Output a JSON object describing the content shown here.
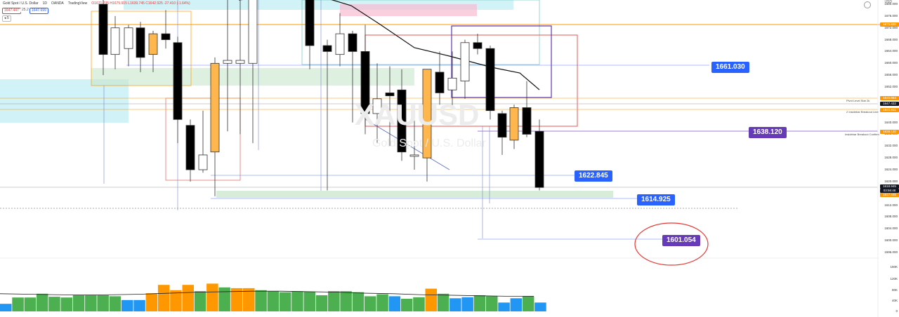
{
  "header": {
    "symbol": "Gold Spot / U.S. Dollar",
    "timeframe": "1D",
    "broker": "OANDA",
    "platform": "TradingView",
    "ohlc": "O1671.235 H1675.915 L1639.745 C1642.925 -27.410 (-1.64%)",
    "sell_price": "1647.447",
    "spread": "25.2",
    "buy_price": "1647.699",
    "indicator_toggle": "◂ 5",
    "currency": "USD"
  },
  "watermark": {
    "symbol": "XAUUSD",
    "name": "Gold Spot / U.S. Dollar"
  },
  "price_labels": [
    {
      "text": "1661.030",
      "color": "#2962ff"
    },
    {
      "text": "1638.120",
      "color": "#673ab7"
    },
    {
      "text": "1622.845",
      "color": "#2962ff"
    },
    {
      "text": "1614.925",
      "color": "#2962ff"
    },
    {
      "text": "1601.054",
      "color": "#673ab7"
    }
  ],
  "annotations": {
    "pivot": "Pivot Level Star 2k",
    "inside_breakout": "2 Insidebar Breakout Line",
    "confirm": "Insidebar Breakout Confirm"
  },
  "axis": {
    "ticks": [
      "1680.000",
      "1676.000",
      "1672.000",
      "1668.000",
      "1664.000",
      "1660.000",
      "1656.000",
      "1652.000",
      "1648.000",
      "1644.000",
      "1640.000",
      "1636.000",
      "1632.000",
      "1628.000",
      "1624.000",
      "1620.000",
      "1616.000",
      "1612.000",
      "1608.000",
      "1604.000",
      "1600.000",
      "1596.000"
    ],
    "vol_ticks": [
      "160K",
      "120K",
      "80K",
      "40K",
      "0"
    ],
    "tags": [
      {
        "text": "1675.830",
        "bg": "#ff9800",
        "fg": "#fff"
      },
      {
        "text": "1645.863",
        "bg": "#ff9800",
        "fg": "#fff"
      },
      {
        "text": "1647.432",
        "bg": "#131722",
        "fg": "#fff"
      },
      {
        "text": "1641.911",
        "bg": "#ff9800",
        "fg": "#fff"
      },
      {
        "text": "1638.120",
        "bg": "#ff9800",
        "fg": "#fff"
      },
      {
        "text": "1618.945",
        "bg": "#131722",
        "fg": "#fff"
      },
      {
        "text": "03:56:48",
        "bg": "#131722",
        "fg": "#fff"
      },
      {
        "text": "1617.445",
        "bg": "#ff9800",
        "fg": "#fff"
      }
    ]
  },
  "chart_data": {
    "type": "candlestick",
    "symbol": "Gold Spot / U.S. Dollar",
    "timeframe": "1D",
    "candles": [
      {
        "o": 1680.0,
        "h": 1682.0,
        "l": 1656.0,
        "c": 1663.0
      },
      {
        "o": 1663.0,
        "h": 1676.0,
        "l": 1658.0,
        "c": 1672.0
      },
      {
        "o": 1665.0,
        "h": 1673.0,
        "l": 1659.0,
        "c": 1672.0
      },
      {
        "o": 1672.0,
        "h": 1674.0,
        "l": 1657.0,
        "c": 1662.0
      },
      {
        "o": 1663.0,
        "h": 1671.0,
        "l": 1657.0,
        "c": 1670.0
      },
      {
        "o": 1670.0,
        "h": 1678.0,
        "l": 1665.0,
        "c": 1668.0
      },
      {
        "o": 1667.0,
        "h": 1669.0,
        "l": 1633.0,
        "c": 1641.0
      },
      {
        "o": 1639.0,
        "h": 1641.0,
        "l": 1620.0,
        "c": 1624.0
      },
      {
        "o": 1624.0,
        "h": 1644.0,
        "l": 1623.0,
        "c": 1629.0
      },
      {
        "o": 1630.0,
        "h": 1662.0,
        "l": 1615.0,
        "c": 1660.0
      },
      {
        "o": 1660.0,
        "h": 1693.0,
        "l": 1637.0,
        "c": 1661.0
      },
      {
        "o": 1660.0,
        "h": 1682.0,
        "l": 1636.0,
        "c": 1661.0
      },
      {
        "o": 1660.0,
        "h": 1701.0,
        "l": 1633.0,
        "c": 1700.0
      },
      {
        "o": 1690.0,
        "h": 1692.0,
        "l": 1658.0,
        "c": 1666.0
      },
      {
        "o": 1666.0,
        "h": 1668.0,
        "l": 1617.0,
        "c": 1664.0
      },
      {
        "o": 1663.0,
        "h": 1677.0,
        "l": 1659.0,
        "c": 1670.0
      },
      {
        "o": 1670.0,
        "h": 1671.0,
        "l": 1640.0,
        "c": 1664.0
      },
      {
        "o": 1664.0,
        "h": 1673.0,
        "l": 1636.0,
        "c": 1643.0
      },
      {
        "o": 1643.0,
        "h": 1660.0,
        "l": 1633.0,
        "c": 1648.0
      },
      {
        "o": 1650.0,
        "h": 1659.0,
        "l": 1632.0,
        "c": 1649.0
      },
      {
        "o": 1651.0,
        "h": 1658.0,
        "l": 1627.0,
        "c": 1630.0
      },
      {
        "o": 1629.0,
        "h": 1645.0,
        "l": 1624.0,
        "c": 1629.0
      },
      {
        "o": 1628.0,
        "h": 1658.0,
        "l": 1620.0,
        "c": 1658.0
      },
      {
        "o": 1657.0,
        "h": 1664.0,
        "l": 1646.0,
        "c": 1650.0
      },
      {
        "o": 1651.0,
        "h": 1664.0,
        "l": 1645.0,
        "c": 1655.0
      },
      {
        "o": 1654.0,
        "h": 1668.0,
        "l": 1648.0,
        "c": 1667.0
      },
      {
        "o": 1667.0,
        "h": 1670.0,
        "l": 1663.0,
        "c": 1665.0
      },
      {
        "o": 1665.0,
        "h": 1666.0,
        "l": 1641.0,
        "c": 1644.0
      },
      {
        "o": 1643.0,
        "h": 1644.0,
        "l": 1629.0,
        "c": 1635.0
      },
      {
        "o": 1634.0,
        "h": 1646.0,
        "l": 1631.0,
        "c": 1645.0
      },
      {
        "o": 1645.0,
        "h": 1654.0,
        "l": 1635.0,
        "c": 1636.0
      },
      {
        "o": 1637.0,
        "h": 1641.0,
        "l": 1617.0,
        "c": 1618.0
      }
    ],
    "moving_average": [
      1702,
      1699,
      1696,
      1693,
      1690,
      1688,
      1686,
      1684,
      1682,
      1680,
      1678,
      1676,
      1674,
      1672,
      1670,
      1668,
      1666,
      1664,
      1663,
      1662,
      1661,
      1660,
      1659,
      1658,
      1657,
      1656,
      1655,
      1654,
      1653
    ],
    "volume": [
      {
        "v": 30,
        "c": "#2196f3"
      },
      {
        "v": 55,
        "c": "#4caf50"
      },
      {
        "v": 55,
        "c": "#4caf50"
      },
      {
        "v": 70,
        "c": "#4caf50"
      },
      {
        "v": 58,
        "c": "#4caf50"
      },
      {
        "v": 55,
        "c": "#4caf50"
      },
      {
        "v": 64,
        "c": "#4caf50"
      },
      {
        "v": 64,
        "c": "#4caf50"
      },
      {
        "v": 64,
        "c": "#4caf50"
      },
      {
        "v": 60,
        "c": "#4caf50"
      },
      {
        "v": 45,
        "c": "#2196f3"
      },
      {
        "v": 45,
        "c": "#2196f3"
      },
      {
        "v": 72,
        "c": "#ff9800"
      },
      {
        "v": 105,
        "c": "#ff9800"
      },
      {
        "v": 84,
        "c": "#ff9800"
      },
      {
        "v": 105,
        "c": "#ff9800"
      },
      {
        "v": 80,
        "c": "#4caf50"
      },
      {
        "v": 110,
        "c": "#ff9800"
      },
      {
        "v": 95,
        "c": "#4caf50"
      },
      {
        "v": 92,
        "c": "#ff9800"
      },
      {
        "v": 92,
        "c": "#ff9800"
      },
      {
        "v": 84,
        "c": "#4caf50"
      },
      {
        "v": 80,
        "c": "#4caf50"
      },
      {
        "v": 76,
        "c": "#4caf50"
      },
      {
        "v": 80,
        "c": "#4caf50"
      },
      {
        "v": 78,
        "c": "#4caf50"
      },
      {
        "v": 64,
        "c": "#4caf50"
      },
      {
        "v": 80,
        "c": "#4caf50"
      },
      {
        "v": 80,
        "c": "#4caf50"
      },
      {
        "v": 76,
        "c": "#4caf50"
      },
      {
        "v": 60,
        "c": "#4caf50"
      },
      {
        "v": 68,
        "c": "#4caf50"
      },
      {
        "v": 60,
        "c": "#2196f3"
      },
      {
        "v": 50,
        "c": "#4caf50"
      },
      {
        "v": 56,
        "c": "#4caf50"
      },
      {
        "v": 90,
        "c": "#ff9800"
      },
      {
        "v": 70,
        "c": "#4caf50"
      },
      {
        "v": 52,
        "c": "#2196f3"
      },
      {
        "v": 56,
        "c": "#2196f3"
      },
      {
        "v": 64,
        "c": "#4caf50"
      },
      {
        "v": 60,
        "c": "#4caf50"
      },
      {
        "v": 35,
        "c": "#2196f3"
      },
      {
        "v": 52,
        "c": "#2196f3"
      },
      {
        "v": 60,
        "c": "#4caf50"
      },
      {
        "v": 35,
        "c": "#2196f3"
      }
    ],
    "volume_ma": [
      70,
      68,
      66,
      65,
      66,
      68,
      72,
      76,
      78,
      80,
      80,
      78,
      76,
      72,
      70,
      66,
      64,
      62,
      60,
      60
    ]
  }
}
